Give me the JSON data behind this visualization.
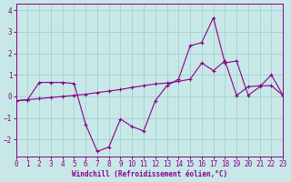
{
  "bg_color": "#c8e8e8",
  "line_color": "#880088",
  "grid_color": "#99cccc",
  "xlim": [
    0,
    23
  ],
  "ylim": [
    -2.8,
    4.3
  ],
  "yticks": [
    -2,
    -1,
    0,
    1,
    2,
    3,
    4
  ],
  "xticks": [
    0,
    1,
    2,
    3,
    4,
    5,
    6,
    7,
    8,
    9,
    10,
    11,
    12,
    13,
    14,
    15,
    16,
    17,
    18,
    19,
    20,
    21,
    22,
    23
  ],
  "xlabel": "Windchill (Refroidissement éolien,°C)",
  "line1_x": [
    0,
    1,
    2,
    3,
    4,
    5,
    6,
    7,
    8,
    9,
    10,
    11,
    12,
    13,
    14,
    15,
    16,
    17,
    18,
    19,
    20,
    21,
    22,
    23
  ],
  "line1_y": [
    -0.2,
    -0.15,
    0.65,
    0.65,
    0.65,
    0.6,
    -1.3,
    -2.55,
    -2.35,
    -1.05,
    -1.4,
    -1.6,
    -0.2,
    0.5,
    0.8,
    2.35,
    2.5,
    3.65,
    1.55,
    1.65,
    0.05,
    0.45,
    1.0,
    0.05
  ],
  "line2_x": [
    0,
    1,
    2,
    3,
    4,
    5,
    6,
    7,
    8,
    9,
    10,
    11,
    12,
    13,
    14,
    15,
    16,
    17,
    18,
    19,
    20,
    21,
    22,
    23
  ],
  "line2_y": [
    -0.2,
    -0.15,
    -0.1,
    -0.05,
    0.0,
    0.05,
    0.1,
    0.18,
    0.25,
    0.32,
    0.42,
    0.5,
    0.58,
    0.62,
    0.7,
    0.8,
    1.55,
    1.2,
    1.65,
    0.05,
    0.45,
    0.5,
    0.5,
    0.05
  ]
}
